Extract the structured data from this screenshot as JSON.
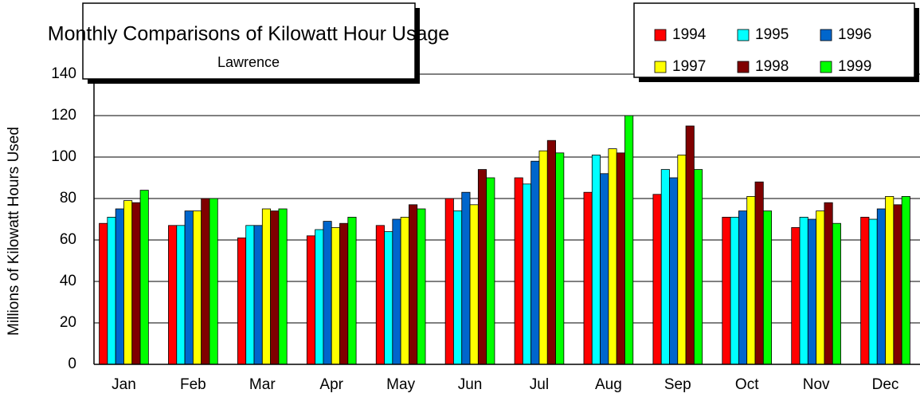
{
  "chart_data": {
    "type": "bar",
    "title": "Monthly Comparisons of Kilowatt Hour Usage",
    "subtitle": "Lawrence",
    "y_label": "Millions of Kilowatt Hours Used",
    "categories": [
      "Jan",
      "Feb",
      "Mar",
      "Apr",
      "May",
      "Jun",
      "Jul",
      "Aug",
      "Sep",
      "Oct",
      "Nov",
      "Dec"
    ],
    "series": [
      {
        "name": "1994",
        "color": "#ff0000",
        "values": [
          68,
          67,
          61,
          62,
          67,
          80,
          90,
          83,
          82,
          71,
          66,
          71
        ]
      },
      {
        "name": "1995",
        "color": "#00ffff",
        "values": [
          71,
          67,
          67,
          65,
          64,
          74,
          87,
          101,
          94,
          71,
          71,
          70
        ]
      },
      {
        "name": "1996",
        "color": "#0066cc",
        "values": [
          75,
          74,
          67,
          69,
          70,
          83,
          98,
          92,
          90,
          74,
          70,
          75
        ]
      },
      {
        "name": "1997",
        "color": "#ffff00",
        "values": [
          79,
          74,
          75,
          66,
          71,
          77,
          103,
          104,
          101,
          81,
          74,
          81
        ]
      },
      {
        "name": "1998",
        "color": "#800000",
        "values": [
          78,
          80,
          74,
          68,
          77,
          94,
          108,
          102,
          115,
          88,
          78,
          77
        ]
      },
      {
        "name": "1999",
        "color": "#00ff00",
        "values": [
          84,
          80,
          75,
          71,
          75,
          90,
          102,
          120,
          94,
          74,
          68,
          81
        ]
      }
    ],
    "ylim": [
      0,
      140
    ],
    "yticks": [
      0,
      20,
      40,
      60,
      80,
      100,
      120,
      140
    ],
    "grid": true
  }
}
